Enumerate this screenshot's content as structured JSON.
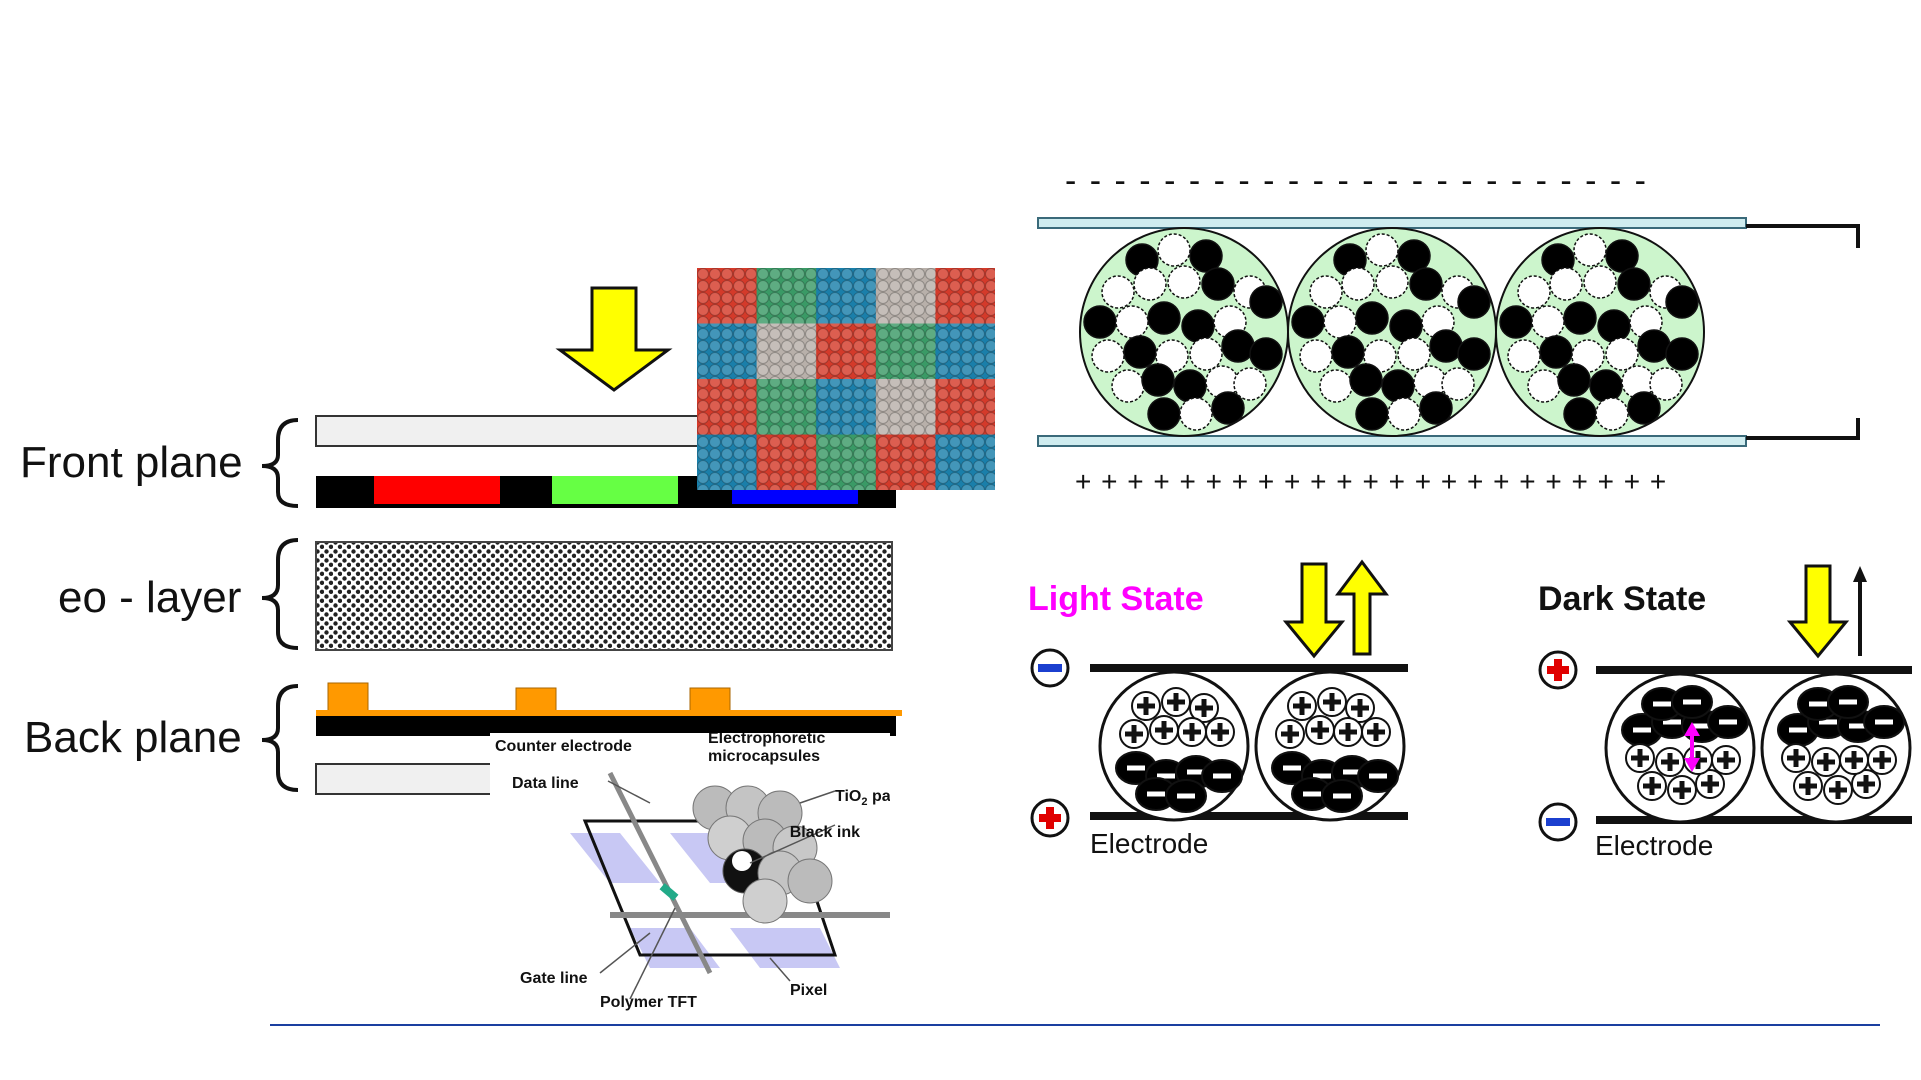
{
  "labels": {
    "front_plane": "Front plane",
    "eo_layer": "eo - layer",
    "back_plane": "Back plane",
    "light_state": "Light State",
    "dark_state": "Dark State",
    "electrode": "Electrode"
  },
  "tft_diagram": {
    "counter_electrode": "Counter electrode",
    "electrophoretic": "Electrophoretic",
    "microcapsules": "microcapsules",
    "tio2_pre": "TiO",
    "tio2_sub": "2",
    "tio2_post": " particle",
    "data_line": "Data line",
    "black_ink": "Black ink",
    "gate_line": "Gate line",
    "polymer_tft": "Polymer TFT",
    "pixel": "Pixel"
  },
  "charges": {
    "top_row": "- - - - - - - - - - - - - - - - - - - - - - - -",
    "bottom_row": "+ + + + + + + + + + + + + + + + + + + + + + +"
  },
  "colors": {
    "accent_magenta": "#ff00ff",
    "arrow_yellow": "#ffff00",
    "stripe_red": "#ff0000",
    "stripe_green": "#66ff44",
    "stripe_blue": "#0000ff",
    "tft_orange": "#ff9900",
    "capsule_green": "#ccf5cc",
    "footer_line": "#1a3fa0"
  }
}
